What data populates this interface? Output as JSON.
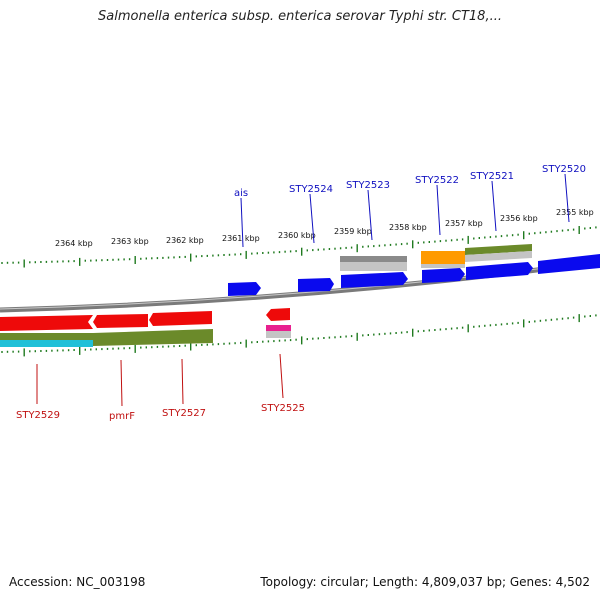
{
  "title": "Salmonella enterica subsp. enterica serovar Typhi str. CT18,...",
  "footer": {
    "accession": "Accession: NC_003198",
    "topology": "Topology: circular; Length: 4,809,037 bp; Genes: 4,502"
  },
  "colors": {
    "backbone": "#7a7a7a",
    "tick": "#1f7a1f",
    "forward_gene": "#0a0aee",
    "reverse_gene": "#ee0a0a",
    "forward_label": "#1010c0",
    "reverse_label": "#c01010",
    "olive": "#6b8a2a",
    "gray_feature": "#b8b8b8",
    "orange": "#ff9900",
    "cyan": "#20c0d8",
    "magenta": "#e8208f"
  },
  "kbp_labels": [
    "2355 kbp",
    "2356 kbp",
    "2357 kbp",
    "2358 kbp",
    "2359 kbp",
    "2360 kbp",
    "2361 kbp",
    "2362 kbp",
    "2363 kbp",
    "2364 kbp"
  ],
  "forward_genes": [
    "ais",
    "STY2524",
    "STY2523",
    "STY2522",
    "STY2521",
    "STY2520"
  ],
  "reverse_genes": [
    "STY2529",
    "pmrF",
    "STY2527",
    "STY2525"
  ]
}
